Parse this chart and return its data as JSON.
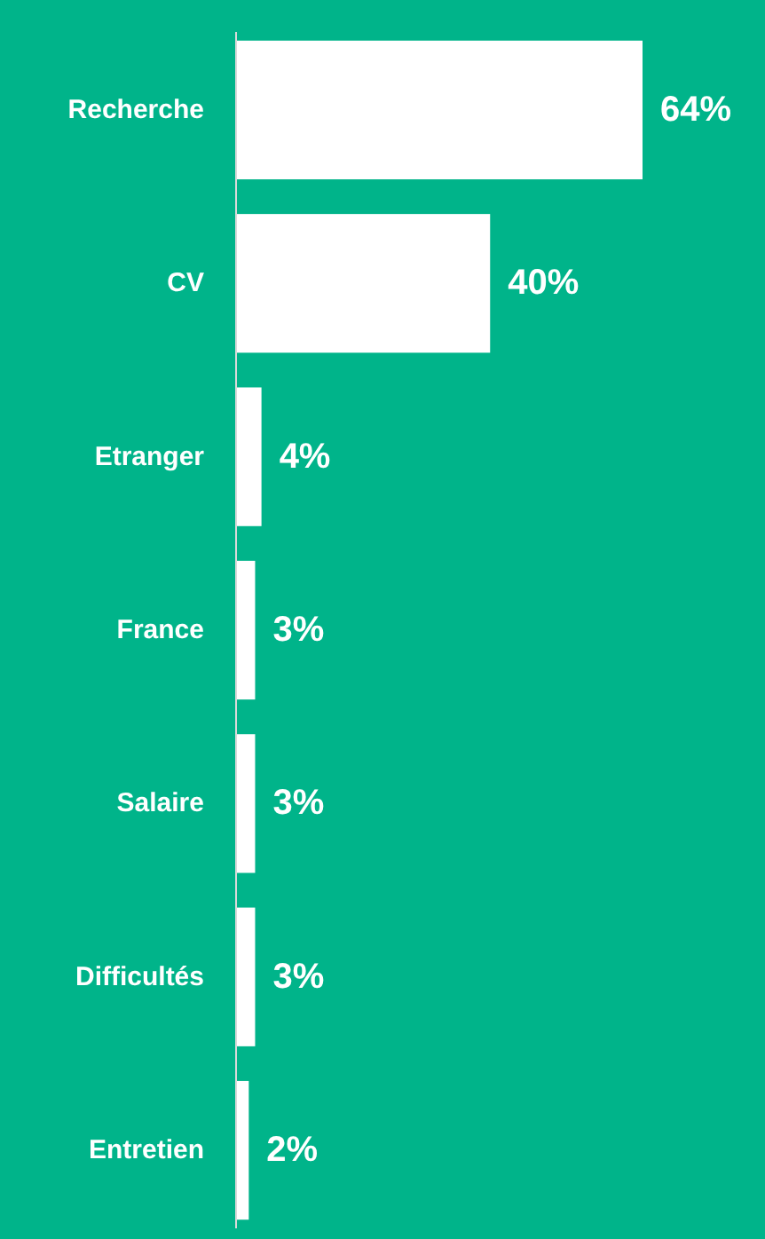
{
  "chart_data": {
    "type": "bar",
    "orientation": "horizontal",
    "categories": [
      "Recherche",
      "CV",
      "Etranger",
      "France",
      "Salaire",
      "Difficultés",
      "Entretien"
    ],
    "values": [
      64,
      40,
      4,
      3,
      3,
      3,
      2
    ],
    "value_labels": [
      "64%",
      "40%",
      "4%",
      "3%",
      "3%",
      "3%",
      "2%"
    ],
    "color": "#ffffff"
  }
}
